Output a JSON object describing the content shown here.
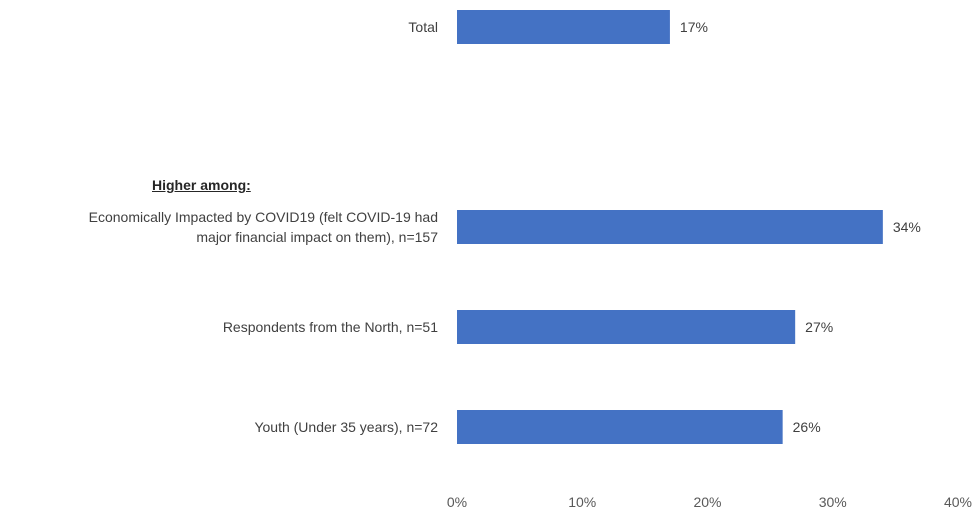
{
  "chart_data": {
    "type": "bar",
    "orientation": "horizontal",
    "categories": [
      [
        "Total"
      ],
      [
        "Economically Impacted by COVID19 (felt COVID-19 had",
        "major financial impact on them), n=157"
      ],
      [
        "Respondents from the North, n=51"
      ],
      [
        "Youth (Under 35 years), n=72"
      ]
    ],
    "values": [
      17,
      34,
      27,
      26
    ],
    "data_labels": [
      "17%",
      "34%",
      "27%",
      "26%"
    ],
    "xlim": [
      0,
      40
    ],
    "x_ticks": [
      "0%",
      "10%",
      "20%",
      "30%",
      "40%"
    ],
    "bar_color": "#4472C4",
    "grid": false,
    "legend": "none",
    "annotation": "Higher among:"
  }
}
